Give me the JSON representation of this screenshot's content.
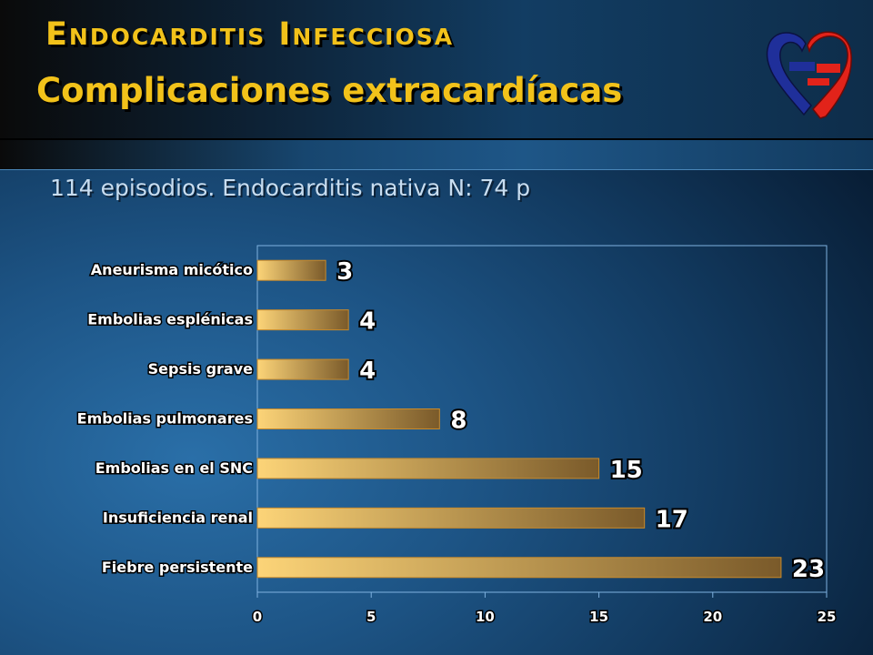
{
  "header": {
    "title": "Endocarditis Infecciosa",
    "subtitle": "Complicaciones extracardíacas"
  },
  "note": "114 episodios. Endocarditis nativa N: 74 p",
  "logo": {
    "icon": "heart-logo-icon",
    "colors": {
      "blue": "#1f2f9a",
      "red": "#e2231a"
    }
  },
  "colors": {
    "title": "#f2c21a",
    "bar_light": "#fcd478",
    "bar_dark": "#7a5a2a",
    "bar_edge": "#c98a2a"
  },
  "chart_data": {
    "type": "bar",
    "orientation": "horizontal",
    "categories": [
      "Aneurisma micótico",
      "Embolias esplénicas",
      "Sepsis grave",
      "Embolias pulmonares",
      "Embolias en el SNC",
      "Insuficiencia renal",
      "Fiebre persistente"
    ],
    "values": [
      3,
      4,
      4,
      8,
      15,
      17,
      23
    ],
    "xlim": [
      0,
      25
    ],
    "xticks": [
      0,
      5,
      10,
      15,
      20,
      25
    ],
    "grid": false,
    "xlabel": "",
    "ylabel": ""
  }
}
